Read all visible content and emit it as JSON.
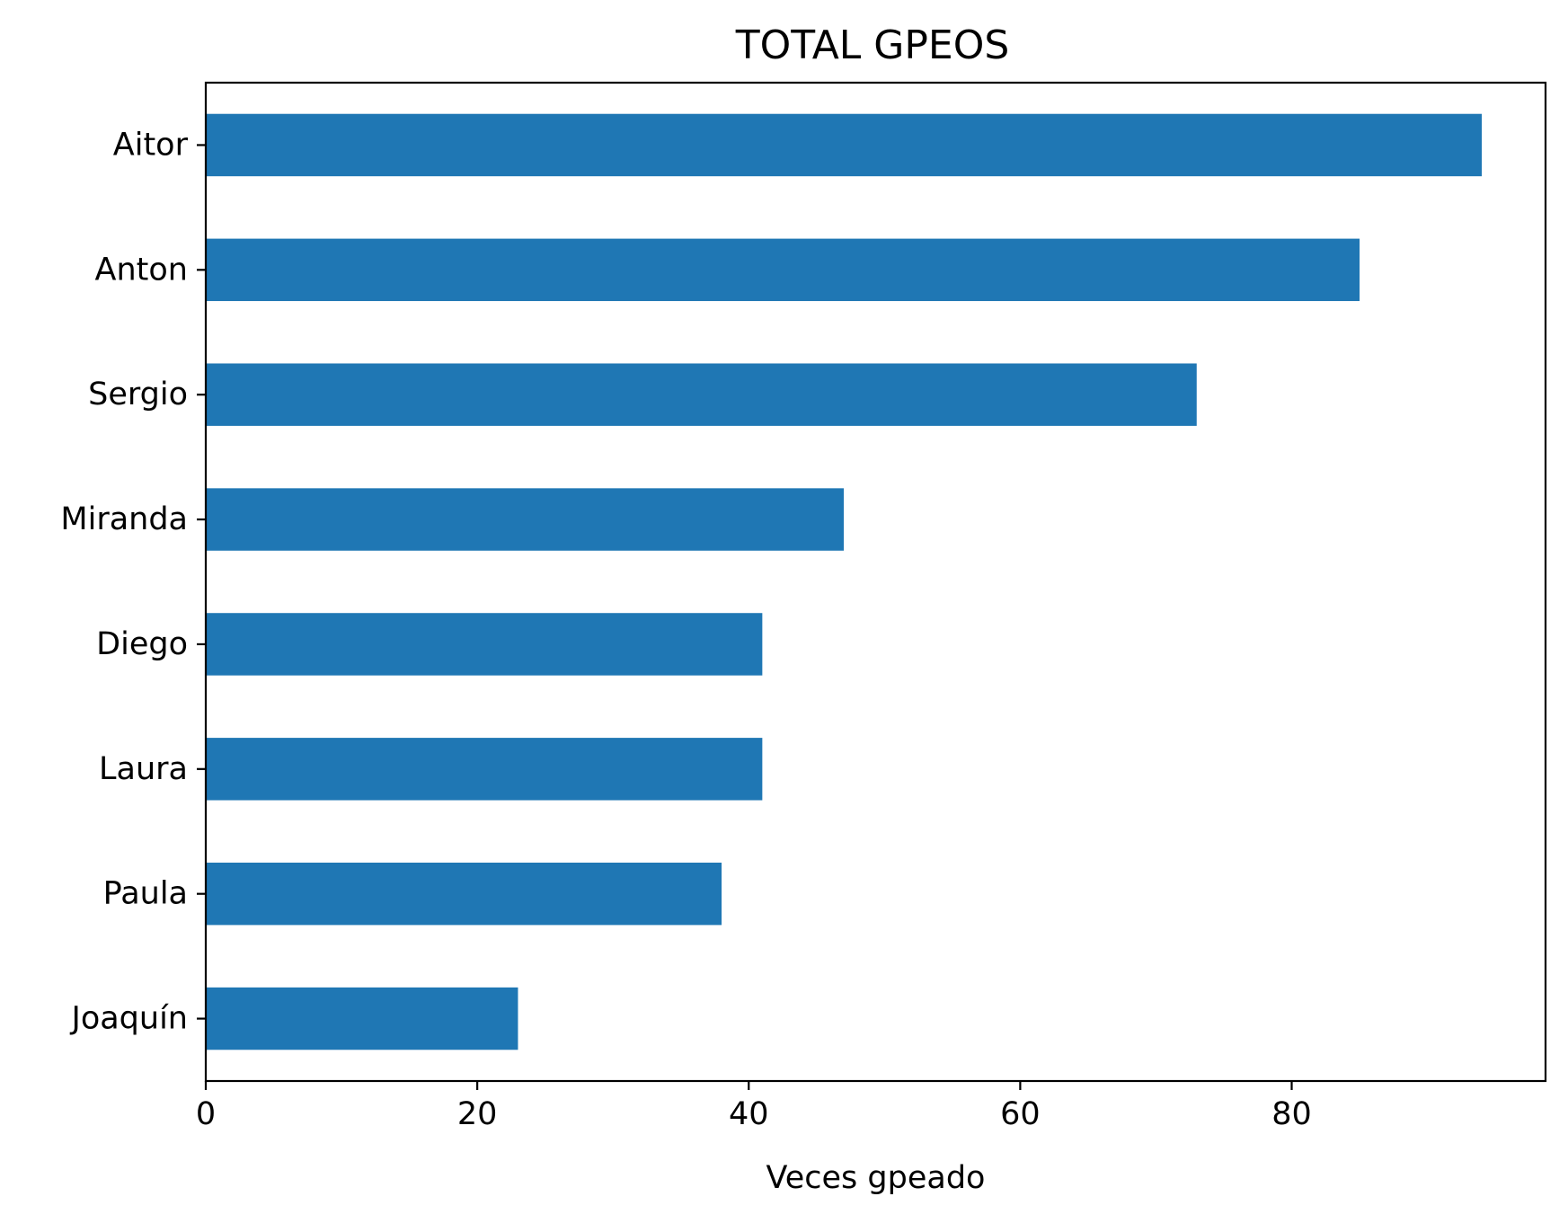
{
  "chart_data": {
    "type": "bar",
    "orientation": "horizontal",
    "title": "TOTAL GPEOS",
    "xlabel": "Veces gpeado",
    "ylabel": "",
    "categories": [
      "Aitor",
      "Anton",
      "Sergio",
      "Miranda",
      "Diego",
      "Laura",
      "Paula",
      "Joaquín"
    ],
    "values": [
      94,
      85,
      73,
      47,
      41,
      41,
      38,
      23
    ],
    "xlim": [
      0,
      98.7
    ],
    "xticks": [
      0,
      20,
      40,
      60,
      80
    ],
    "bar_color": "#1f77b4",
    "grid": false,
    "legend": "none"
  }
}
